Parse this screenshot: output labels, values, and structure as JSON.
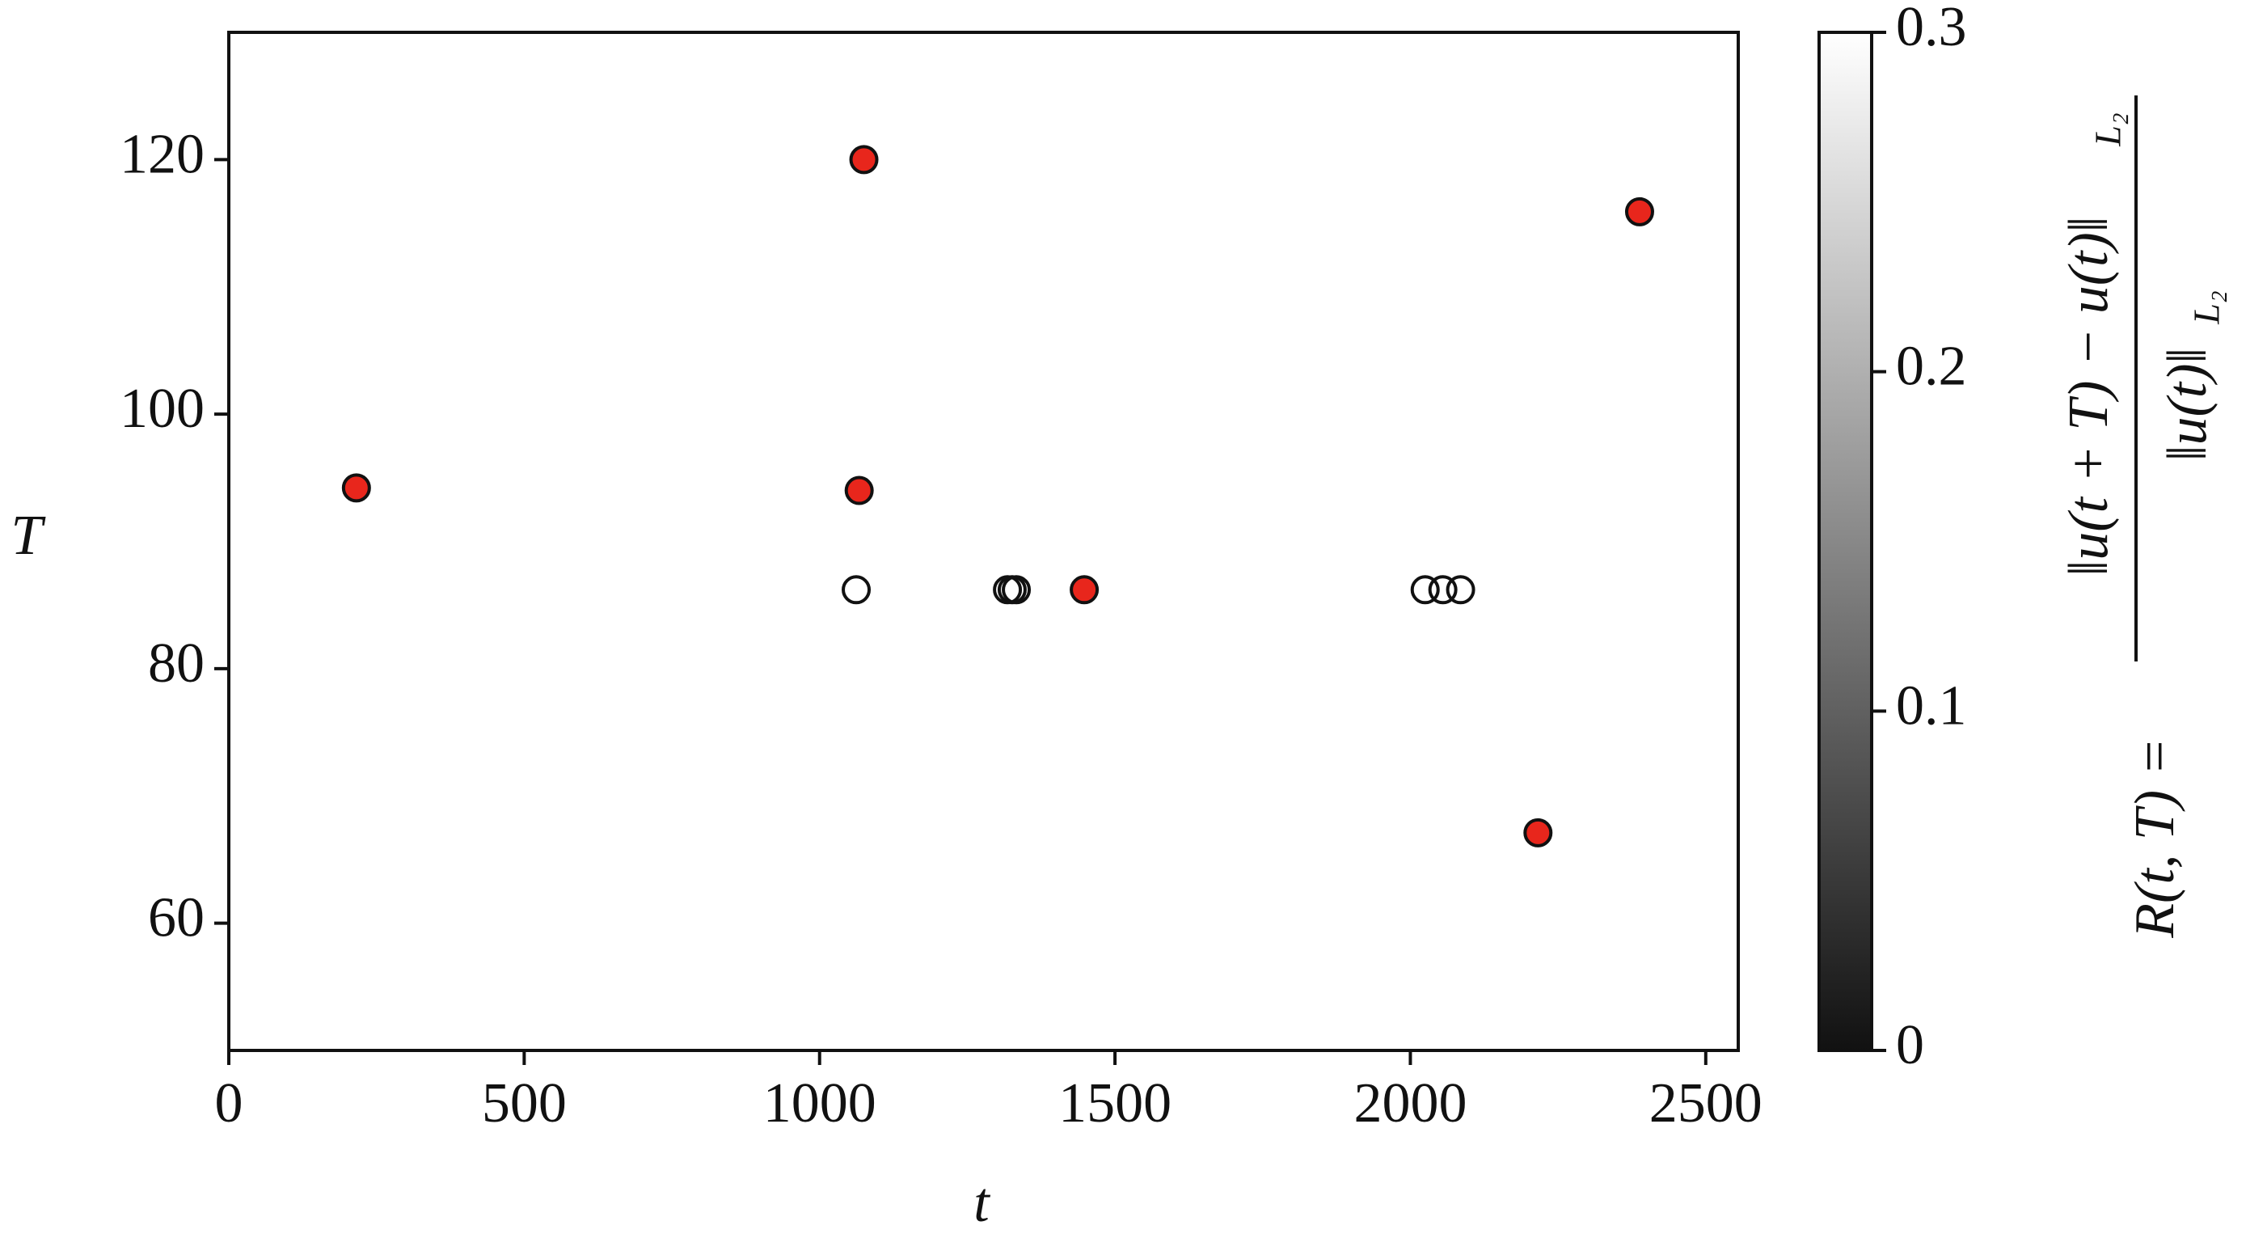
{
  "chart_data": {
    "type": "scatter",
    "x_label": "t",
    "y_label": "T",
    "xlim": [
      0,
      2555
    ],
    "ylim": [
      50,
      130
    ],
    "xticks": [
      0,
      500,
      1000,
      1500,
      2000,
      2500
    ],
    "yticks": [
      60,
      80,
      100,
      120
    ],
    "series": [
      {
        "color": "#e8261c",
        "x": [
          216,
          1075,
          1067,
          1448,
          2216,
          2388
        ],
        "values": [
          94.2,
          120,
          94,
          86.2,
          67.1,
          115.9
        ]
      },
      {
        "color": "none",
        "x": [
          1062,
          1318,
          1326,
          1333,
          2025,
          2055,
          2085
        ],
        "values": [
          86.2,
          86.2,
          86.2,
          86.2,
          86.2,
          86.2,
          86.2
        ]
      }
    ],
    "colorbar": {
      "lim": [
        0,
        0.3
      ],
      "ticks": [
        0,
        0.1,
        0.2,
        0.3
      ],
      "cmap": [
        "#111111",
        "#ffffff"
      ],
      "label_lhs": "R(t, T) =",
      "label_numerator": "‖u(t + T) − u(t)‖",
      "label_denominator": "‖u(t)‖",
      "label_subscript": "L₂"
    }
  }
}
